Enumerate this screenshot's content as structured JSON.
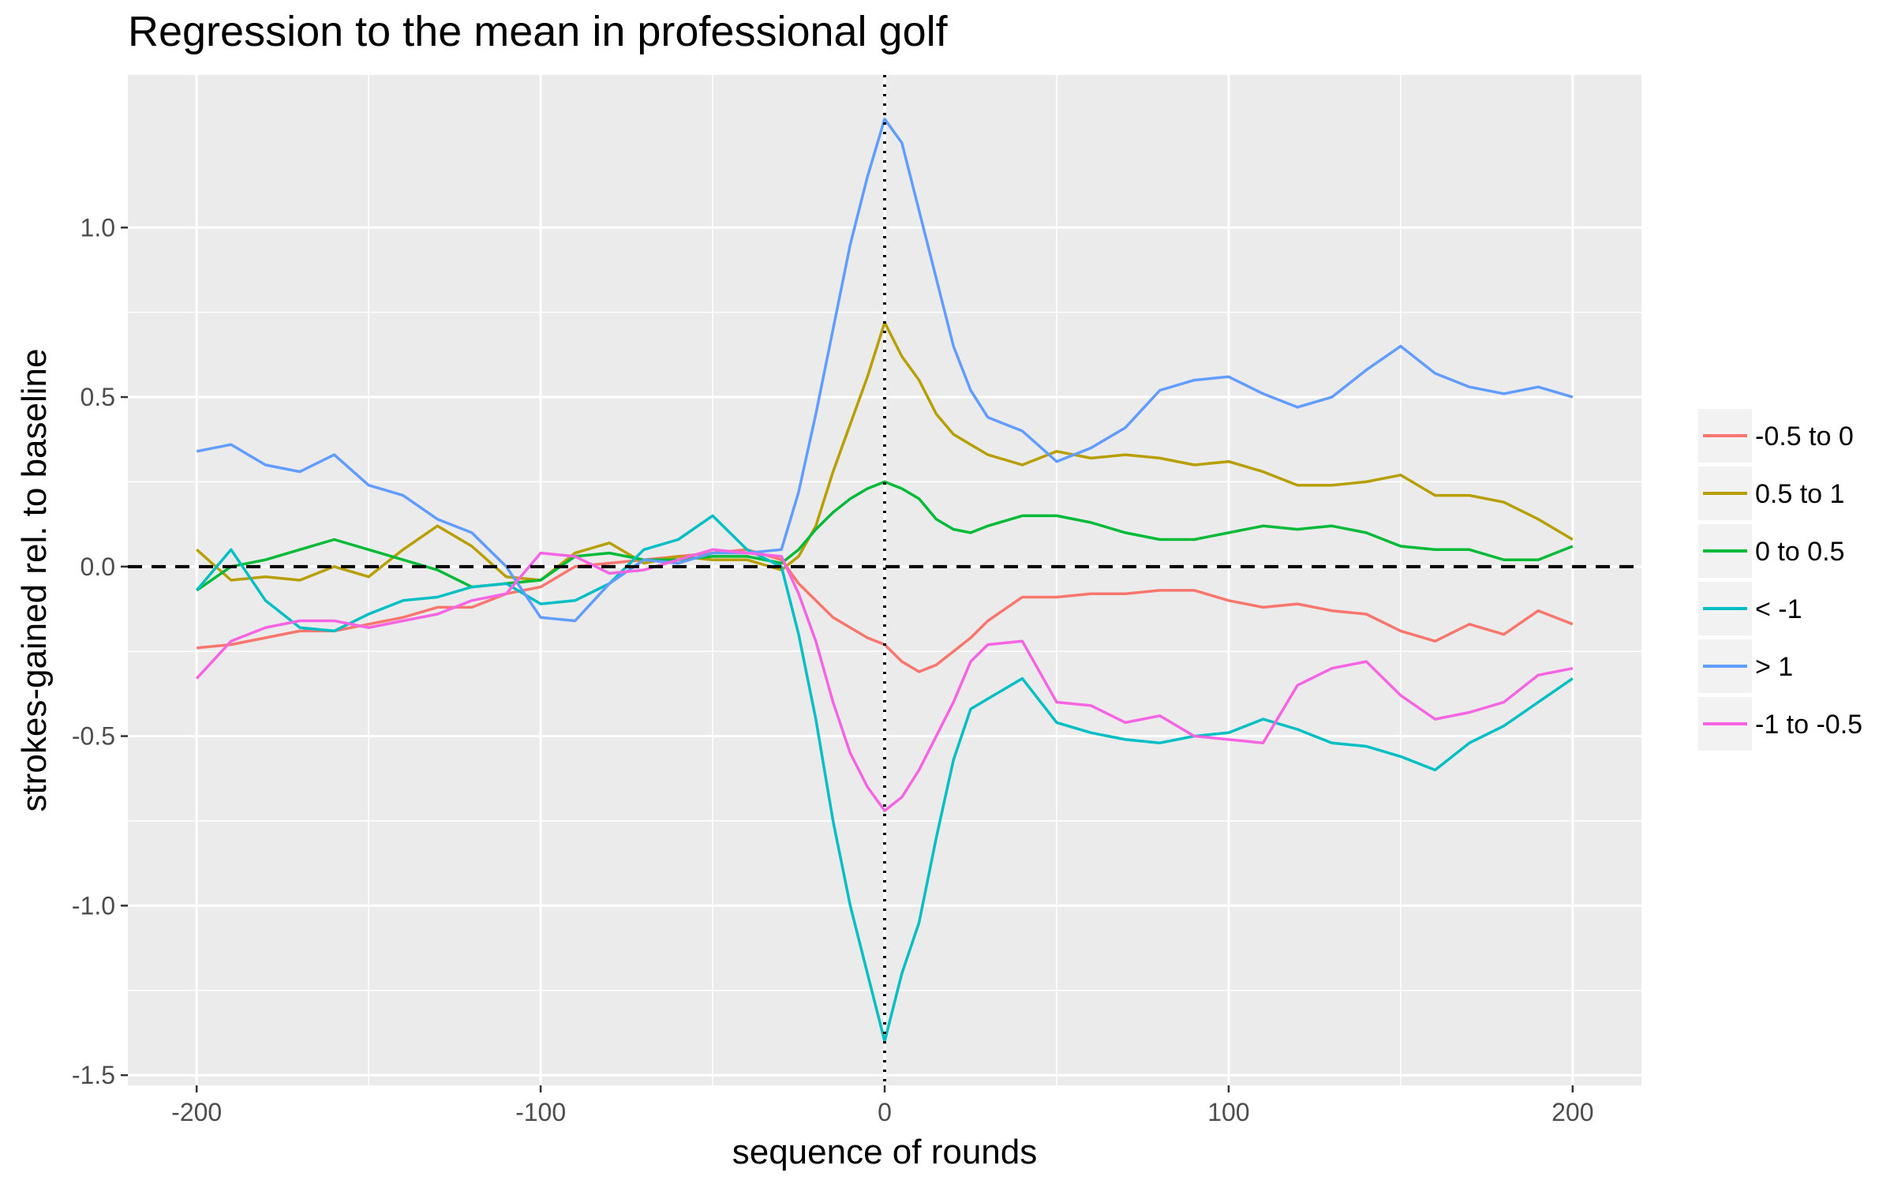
{
  "chart_data": {
    "type": "line",
    "title": "Regression to the mean in professional golf",
    "xlabel": "sequence of rounds",
    "ylabel": "strokes-gained rel. to baseline",
    "xlim": [
      -220,
      220
    ],
    "ylim": [
      -1.53,
      1.45
    ],
    "x_ticks": [
      -200,
      -100,
      0,
      100,
      200
    ],
    "x_tick_labels": [
      "-200",
      "-100",
      "0",
      "100",
      "200"
    ],
    "y_ticks": [
      -1.5,
      -1.0,
      -0.5,
      0.0,
      0.5,
      1.0
    ],
    "y_tick_labels": [
      "-1.5",
      "-1.0",
      "-0.5",
      "0.0",
      "0.5",
      "1.0"
    ],
    "grid": true,
    "reference_lines": [
      {
        "orientation": "horizontal",
        "value": 0,
        "style": "dashed"
      },
      {
        "orientation": "vertical",
        "value": 0,
        "style": "dotted"
      }
    ],
    "legend_position": "right",
    "x": [
      -200,
      -190,
      -180,
      -170,
      -160,
      -150,
      -140,
      -130,
      -120,
      -110,
      -100,
      -90,
      -80,
      -70,
      -60,
      -50,
      -40,
      -30,
      -25,
      -20,
      -15,
      -10,
      -5,
      0,
      5,
      10,
      15,
      20,
      25,
      30,
      40,
      50,
      60,
      70,
      80,
      90,
      100,
      110,
      120,
      130,
      140,
      150,
      160,
      170,
      180,
      190,
      200
    ],
    "series": [
      {
        "name": "-0.5 to 0",
        "color": "#F8766D",
        "values": [
          -0.24,
          -0.23,
          -0.21,
          -0.19,
          -0.19,
          -0.17,
          -0.15,
          -0.12,
          -0.12,
          -0.08,
          -0.06,
          0.0,
          0.01,
          0.02,
          0.03,
          0.04,
          0.05,
          0.02,
          -0.05,
          -0.1,
          -0.15,
          -0.18,
          -0.21,
          -0.23,
          -0.28,
          -0.31,
          -0.29,
          -0.25,
          -0.21,
          -0.16,
          -0.09,
          -0.09,
          -0.08,
          -0.08,
          -0.07,
          -0.07,
          -0.1,
          -0.12,
          -0.11,
          -0.13,
          -0.14,
          -0.19,
          -0.22,
          -0.17,
          -0.2,
          -0.13,
          -0.17
        ]
      },
      {
        "name": "0.5 to 1",
        "color": "#B79F00",
        "values": [
          0.05,
          -0.04,
          -0.03,
          -0.04,
          0.0,
          -0.03,
          0.05,
          0.12,
          0.06,
          -0.03,
          -0.04,
          0.04,
          0.07,
          0.01,
          0.03,
          0.02,
          0.02,
          -0.01,
          0.03,
          0.12,
          0.28,
          0.42,
          0.56,
          0.72,
          0.62,
          0.55,
          0.45,
          0.39,
          0.36,
          0.33,
          0.3,
          0.34,
          0.32,
          0.33,
          0.32,
          0.3,
          0.31,
          0.28,
          0.24,
          0.24,
          0.25,
          0.27,
          0.21,
          0.21,
          0.19,
          0.14,
          0.08
        ]
      },
      {
        "name": "0 to 0.5",
        "color": "#00BA38",
        "values": [
          -0.07,
          0.0,
          0.02,
          0.05,
          0.08,
          0.05,
          0.02,
          -0.01,
          -0.06,
          -0.05,
          -0.04,
          0.03,
          0.04,
          0.02,
          0.02,
          0.03,
          0.03,
          0.01,
          0.05,
          0.11,
          0.16,
          0.2,
          0.23,
          0.25,
          0.23,
          0.2,
          0.14,
          0.11,
          0.1,
          0.12,
          0.15,
          0.15,
          0.13,
          0.1,
          0.08,
          0.08,
          0.1,
          0.12,
          0.11,
          0.12,
          0.1,
          0.06,
          0.05,
          0.05,
          0.02,
          0.02,
          0.06
        ]
      },
      {
        "name": "< -1",
        "color": "#00BFC4",
        "values": [
          -0.07,
          0.05,
          -0.1,
          -0.18,
          -0.19,
          -0.14,
          -0.1,
          -0.09,
          -0.06,
          -0.05,
          -0.11,
          -0.1,
          -0.05,
          0.05,
          0.08,
          0.15,
          0.05,
          0.0,
          -0.2,
          -0.45,
          -0.75,
          -1.0,
          -1.2,
          -1.4,
          -1.2,
          -1.05,
          -0.8,
          -0.57,
          -0.42,
          -0.39,
          -0.33,
          -0.46,
          -0.49,
          -0.51,
          -0.52,
          -0.5,
          -0.49,
          -0.45,
          -0.48,
          -0.52,
          -0.53,
          -0.56,
          -0.6,
          -0.52,
          -0.47,
          -0.4,
          -0.33
        ]
      },
      {
        "name": "> 1",
        "color": "#619CFF",
        "values": [
          0.34,
          0.36,
          0.3,
          0.28,
          0.33,
          0.24,
          0.21,
          0.14,
          0.1,
          0.0,
          -0.15,
          -0.16,
          -0.05,
          0.02,
          0.01,
          0.04,
          0.04,
          0.05,
          0.22,
          0.45,
          0.7,
          0.95,
          1.15,
          1.32,
          1.25,
          1.05,
          0.85,
          0.65,
          0.52,
          0.44,
          0.4,
          0.31,
          0.35,
          0.41,
          0.52,
          0.55,
          0.56,
          0.51,
          0.47,
          0.5,
          0.58,
          0.65,
          0.57,
          0.53,
          0.51,
          0.53,
          0.5
        ]
      },
      {
        "name": "-1 to -0.5",
        "color": "#F564E3",
        "values": [
          -0.33,
          -0.22,
          -0.18,
          -0.16,
          -0.16,
          -0.18,
          -0.16,
          -0.14,
          -0.1,
          -0.08,
          0.04,
          0.03,
          -0.02,
          -0.01,
          0.02,
          0.05,
          0.04,
          0.03,
          -0.08,
          -0.22,
          -0.4,
          -0.55,
          -0.65,
          -0.72,
          -0.68,
          -0.6,
          -0.5,
          -0.4,
          -0.28,
          -0.23,
          -0.22,
          -0.4,
          -0.41,
          -0.46,
          -0.44,
          -0.5,
          -0.51,
          -0.52,
          -0.35,
          -0.3,
          -0.28,
          -0.38,
          -0.45,
          -0.43,
          -0.4,
          -0.32,
          -0.3
        ]
      }
    ]
  }
}
